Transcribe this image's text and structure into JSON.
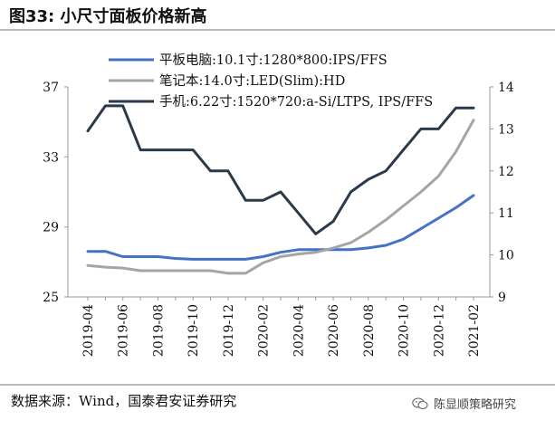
{
  "header": {
    "title": "图33: 小尺寸面板价格新高"
  },
  "footer": {
    "source": "数据来源：Wind，国泰君安证券研究",
    "watermark": "陈显顺策略研究"
  },
  "chart_data": {
    "type": "line",
    "categories": [
      "2019-04",
      "2019-05",
      "2019-06",
      "2019-07",
      "2019-08",
      "2019-09",
      "2019-10",
      "2019-11",
      "2019-12",
      "2020-01",
      "2020-02",
      "2020-03",
      "2020-04",
      "2020-05",
      "2020-06",
      "2020-07",
      "2020-08",
      "2020-09",
      "2020-10",
      "2020-11",
      "2020-12",
      "2021-01",
      "2021-02"
    ],
    "x_tick_labels": [
      "2019-04",
      "2019-06",
      "2019-08",
      "2019-10",
      "2019-12",
      "2020-02",
      "2020-04",
      "2020-06",
      "2020-08",
      "2020-10",
      "2020-12",
      "2021-02"
    ],
    "y_left": {
      "ylim": [
        25,
        37
      ],
      "ticks": [
        25,
        29,
        33,
        37
      ]
    },
    "y_right": {
      "ylim": [
        9,
        14
      ],
      "ticks": [
        9,
        10,
        11,
        12,
        13,
        14
      ]
    },
    "legend_position": "top-left",
    "grid": false,
    "series": [
      {
        "name": "平板电脑:10.1寸:1280*800:IPS/FFS",
        "axis": "left",
        "color": "#4472c4",
        "values": [
          27.6,
          27.6,
          27.3,
          27.3,
          27.3,
          27.2,
          27.15,
          27.15,
          27.15,
          27.15,
          27.3,
          27.55,
          27.7,
          27.7,
          27.7,
          27.7,
          27.8,
          27.95,
          28.3,
          28.9,
          29.5,
          30.1,
          30.8
        ]
      },
      {
        "name": "笔记本:14.0寸:LED(Slim):HD",
        "axis": "left",
        "color": "#a5a5a5",
        "values": [
          26.8,
          26.7,
          26.65,
          26.5,
          26.5,
          26.5,
          26.5,
          26.5,
          26.35,
          26.35,
          26.95,
          27.3,
          27.45,
          27.55,
          27.8,
          28.1,
          28.7,
          29.4,
          30.2,
          31.0,
          31.9,
          33.3,
          35.1
        ]
      },
      {
        "name": "手机:6.22寸:1520*720:a-Si/LTPS, IPS/FFS",
        "axis": "right",
        "color": "#2b3a4a",
        "values": [
          12.95,
          13.55,
          13.55,
          12.5,
          12.5,
          12.5,
          12.5,
          12.0,
          12.0,
          11.3,
          11.3,
          11.5,
          11.0,
          10.5,
          10.8,
          11.5,
          11.8,
          12.0,
          12.5,
          13.0,
          13.0,
          13.5,
          13.5
        ]
      }
    ]
  }
}
